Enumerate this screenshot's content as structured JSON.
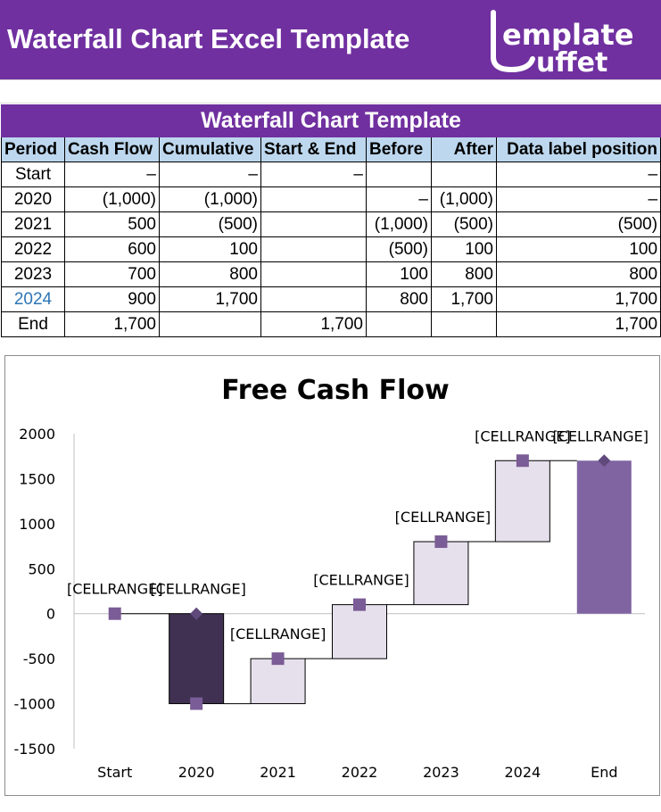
{
  "header": {
    "title": "Waterfall Chart Excel Template",
    "logo_text": "emplate uffet",
    "brand_color": "#7030a0"
  },
  "table": {
    "title": "Waterfall Chart Template",
    "columns": [
      "Period",
      "Cash Flow",
      "Cumulative",
      "Start & End",
      "Before",
      "After",
      "Data label position"
    ],
    "rows": [
      [
        "Start",
        "–",
        "–",
        "–",
        "",
        "",
        "–"
      ],
      [
        "2020",
        "(1,000)",
        "(1,000)",
        "",
        "–",
        "(1,000)",
        "–"
      ],
      [
        "2021",
        "500",
        "(500)",
        "",
        "(1,000)",
        "(500)",
        "(500)"
      ],
      [
        "2022",
        "600",
        "100",
        "",
        "(500)",
        "100",
        "100"
      ],
      [
        "2023",
        "700",
        "800",
        "",
        "100",
        "800",
        "800"
      ],
      [
        "2024",
        "900",
        "1,700",
        "",
        "800",
        "1,700",
        "1,700"
      ],
      [
        "End",
        "1,700",
        "",
        "1,700",
        "",
        "",
        "1,700"
      ]
    ],
    "header_bg": "#bdd7ee",
    "highlight_color": "#2e75b6"
  },
  "chart_data": {
    "type": "bar",
    "subtype": "waterfall",
    "title": "Free Cash Flow",
    "categories": [
      "Start",
      "2020",
      "2021",
      "2022",
      "2023",
      "2024",
      "End"
    ],
    "cash_flow": [
      0,
      -1000,
      500,
      600,
      700,
      900,
      1700
    ],
    "before": [
      0,
      0,
      -1000,
      -500,
      100,
      800,
      0
    ],
    "after": [
      0,
      -1000,
      -500,
      100,
      800,
      1700,
      1700
    ],
    "start_end": [
      0,
      null,
      null,
      null,
      null,
      null,
      1700
    ],
    "label_position": [
      0,
      0,
      -500,
      100,
      800,
      1700,
      1700
    ],
    "data_labels": [
      "[CELLRANGE]",
      "[CELLRANGE]",
      "[CELLRANGE]",
      "[CELLRANGE]",
      "[CELLRANGE]",
      "[CELLRANGE]",
      "[CELLRANGE]"
    ],
    "ylim": [
      -1500,
      2000
    ],
    "yticks": [
      2000,
      1500,
      1000,
      500,
      0,
      -500,
      -1000,
      -1500
    ],
    "xlabel": "",
    "ylabel": "",
    "grid": false,
    "legend": "none",
    "colors": {
      "decrease": "#403152",
      "increase": "#e6e0ec",
      "total": "#8064a2",
      "marker": "#7a5c96",
      "connector": "#000000"
    }
  }
}
